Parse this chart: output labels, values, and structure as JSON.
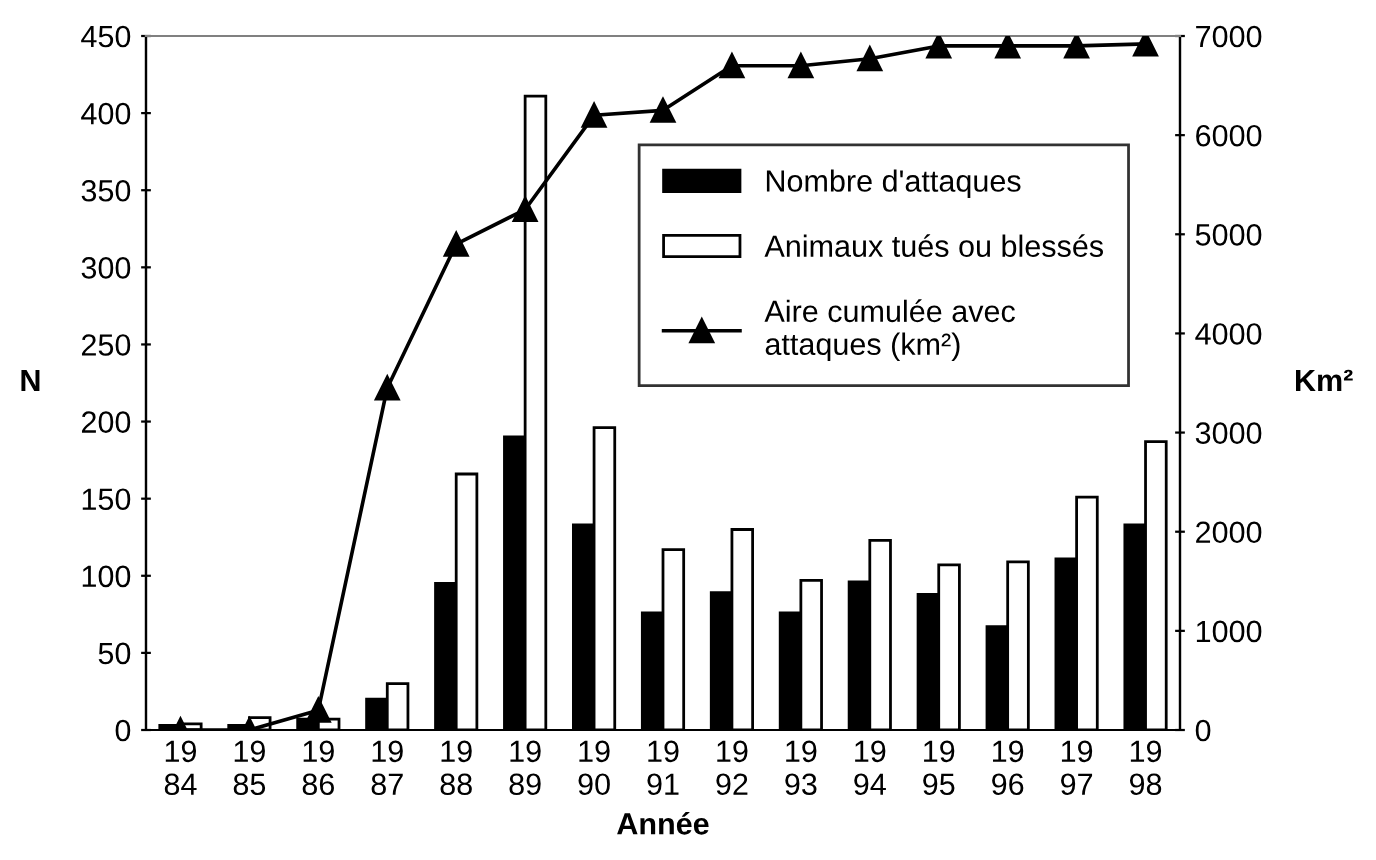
{
  "chart_data": {
    "type": "bar",
    "xlabel": "Année",
    "ylabel": "N",
    "y2label": "Km²",
    "categories": [
      "19\n84",
      "19\n85",
      "19\n86",
      "19\n87",
      "19\n88",
      "19\n89",
      "19\n90",
      "19\n91",
      "19\n92",
      "19\n93",
      "19\n94",
      "19\n95",
      "19\n96",
      "19\n97",
      "19\n98"
    ],
    "series": [
      {
        "name": "Nombre d'attaques",
        "color": "#000000",
        "values": [
          3,
          3,
          7,
          20,
          95,
          190,
          133,
          76,
          89,
          76,
          96,
          88,
          67,
          111,
          133
        ]
      },
      {
        "name": "Animaux tués ou blessés",
        "color": "#ffffff",
        "values": [
          4,
          8,
          7,
          30,
          166,
          411,
          196,
          117,
          130,
          97,
          123,
          107,
          109,
          151,
          187
        ]
      },
      {
        "name": "Aire cumulée avec\nattaques (km²)",
        "type": "line",
        "axis": "y2",
        "color": "#000000",
        "marker": "triangle",
        "values": [
          0,
          0,
          200,
          3450,
          4900,
          5250,
          6200,
          6250,
          6700,
          6700,
          6770,
          6900,
          6900,
          6900,
          6920
        ]
      }
    ],
    "ylim": [
      0,
      450
    ],
    "yticks": [
      0,
      50,
      100,
      150,
      200,
      250,
      300,
      350,
      400,
      450
    ],
    "y2lim": [
      0,
      7000
    ],
    "y2ticks": [
      0,
      1000,
      2000,
      3000,
      4000,
      5000,
      6000,
      7000
    ],
    "grid": false,
    "legend": "top right"
  }
}
